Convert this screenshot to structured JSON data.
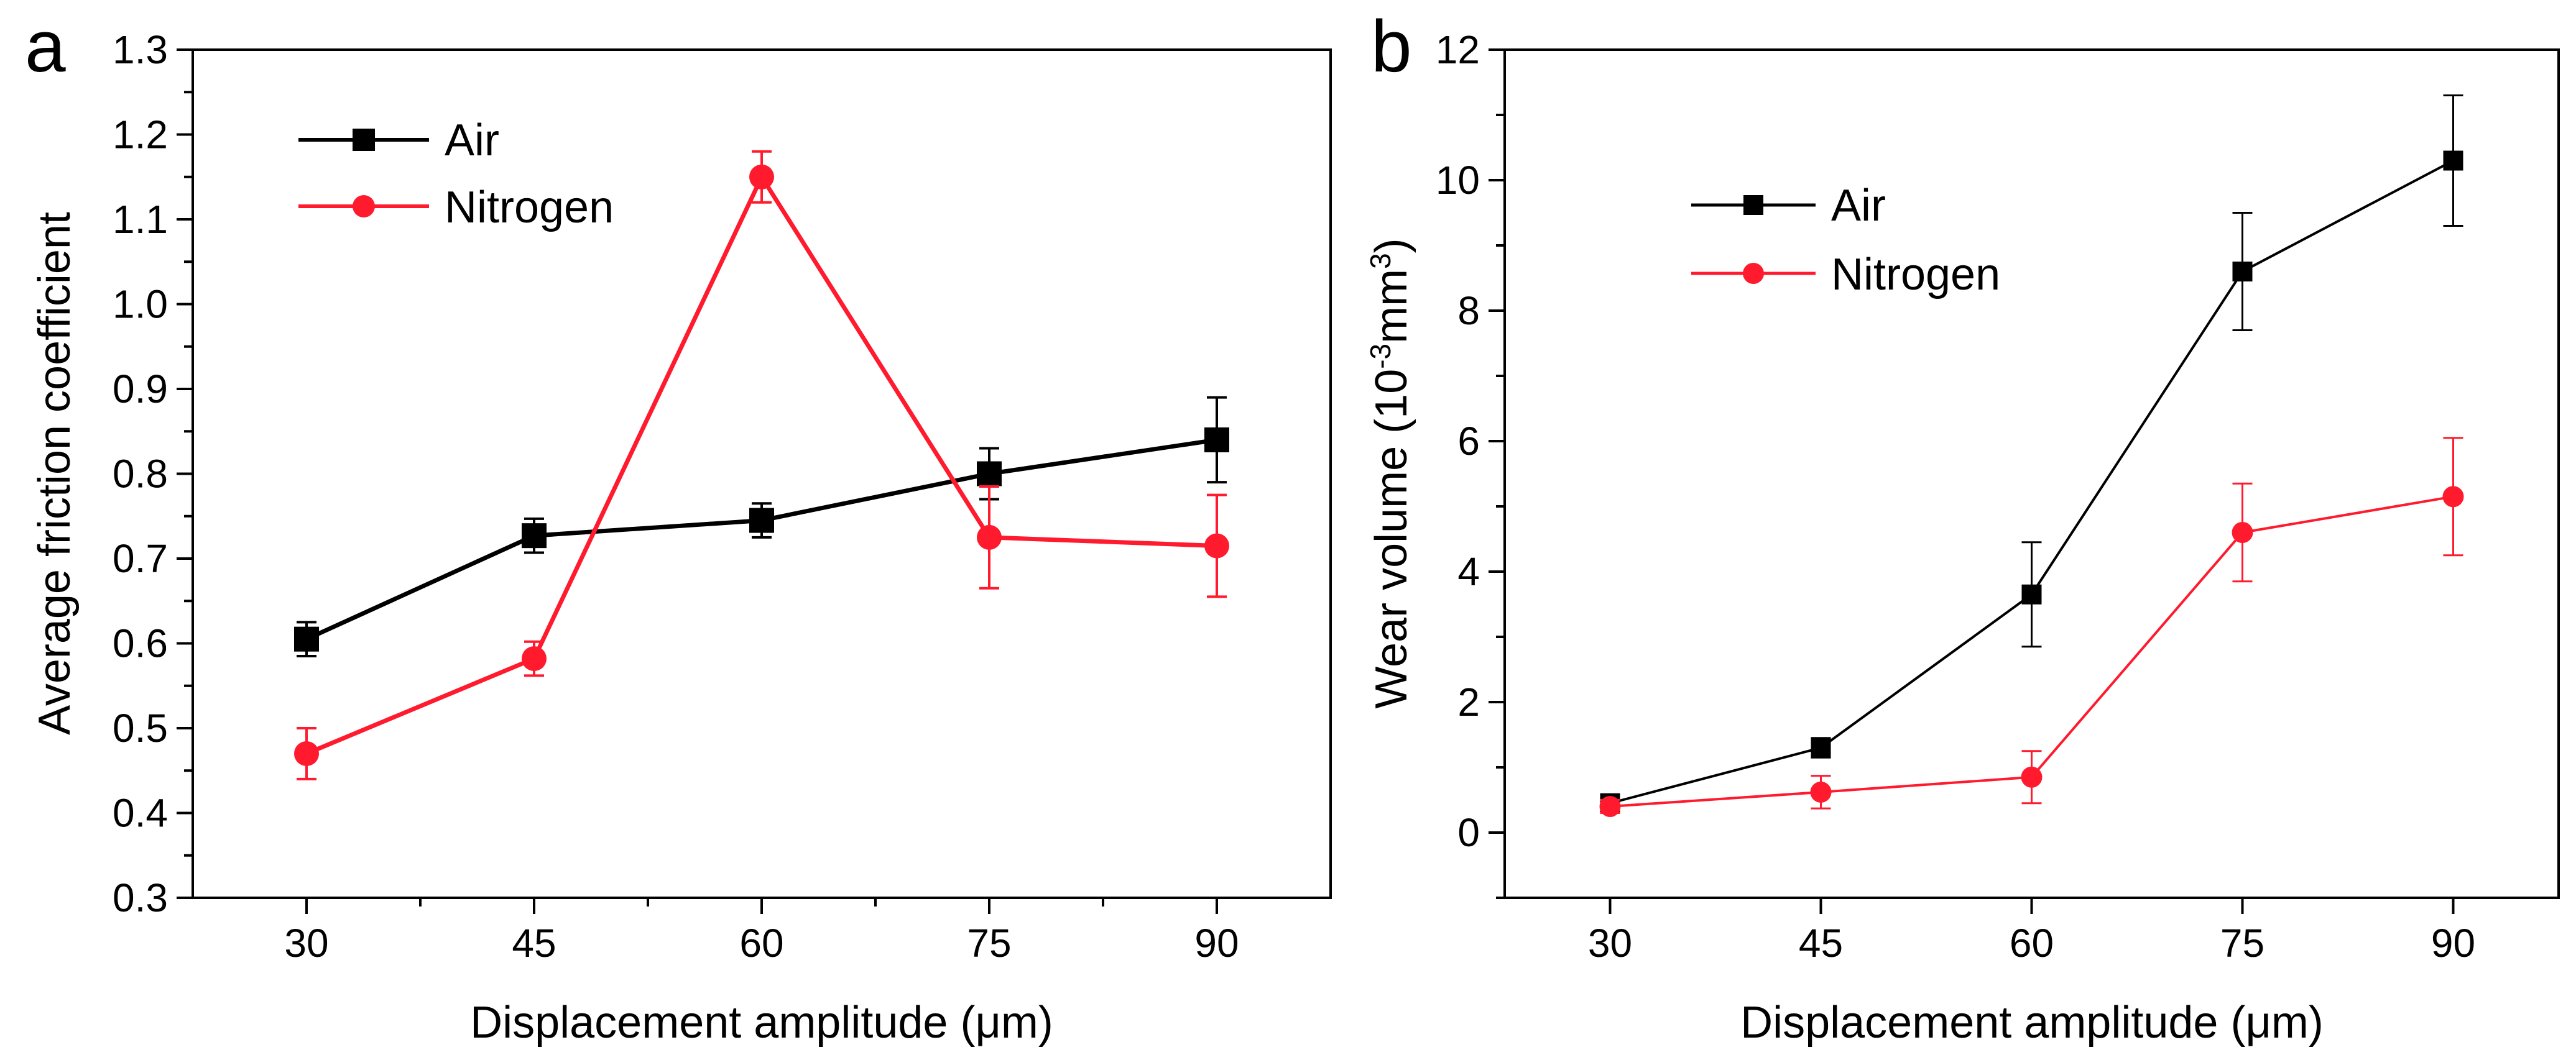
{
  "chart_data": [
    {
      "panel": "a",
      "type": "line",
      "xlabel": "Displacement amplitude (μm)",
      "ylabel": "Average friction coefficient",
      "x": [
        30,
        45,
        60,
        75,
        90
      ],
      "xticks": [
        "30",
        "45",
        "60",
        "75",
        "90"
      ],
      "xlim": [
        22.5,
        97.5
      ],
      "ylim": [
        0.3,
        1.3
      ],
      "yticks": [
        "0.3",
        "0.4",
        "0.5",
        "0.6",
        "0.7",
        "0.8",
        "0.9",
        "1.0",
        "1.1",
        "1.2",
        "1.3"
      ],
      "grid": false,
      "legend_position": "top-left",
      "series": [
        {
          "name": "Air",
          "color": "#000000",
          "marker": "square",
          "values": [
            0.605,
            0.727,
            0.745,
            0.8,
            0.84
          ],
          "errors": [
            0.02,
            0.02,
            0.02,
            0.03,
            0.05
          ]
        },
        {
          "name": "Nitrogen",
          "color": "#ff1a2e",
          "marker": "circle",
          "values": [
            0.47,
            0.582,
            1.15,
            0.725,
            0.715
          ],
          "errors": [
            0.03,
            0.02,
            0.03,
            0.06,
            0.06
          ]
        }
      ]
    },
    {
      "panel": "b",
      "type": "line",
      "xlabel": "Displacement amplitude (μm)",
      "ylabel_main": "Wear volume (10",
      "ylabel_sup1": "-3",
      "ylabel_mid": "mm",
      "ylabel_sup2": "3",
      "ylabel_end": ")",
      "x": [
        30,
        45,
        60,
        75,
        90
      ],
      "xticks": [
        "30",
        "45",
        "60",
        "75",
        "90"
      ],
      "xlim": [
        22.5,
        97.5
      ],
      "ylim": [
        -1,
        12
      ],
      "yticks": [
        "0",
        "2",
        "4",
        "6",
        "8",
        "10",
        "12"
      ],
      "grid": false,
      "legend_position": "top-left",
      "series": [
        {
          "name": "Air",
          "color": "#000000",
          "marker": "square",
          "values": [
            0.45,
            1.3,
            3.65,
            8.6,
            10.3
          ],
          "errors": [
            0.1,
            0.15,
            0.8,
            0.9,
            1.0
          ]
        },
        {
          "name": "Nitrogen",
          "color": "#ff1a2e",
          "marker": "circle",
          "values": [
            0.4,
            0.62,
            0.85,
            4.6,
            5.15
          ],
          "errors": [
            0.1,
            0.25,
            0.4,
            0.75,
            0.9
          ]
        }
      ]
    }
  ]
}
